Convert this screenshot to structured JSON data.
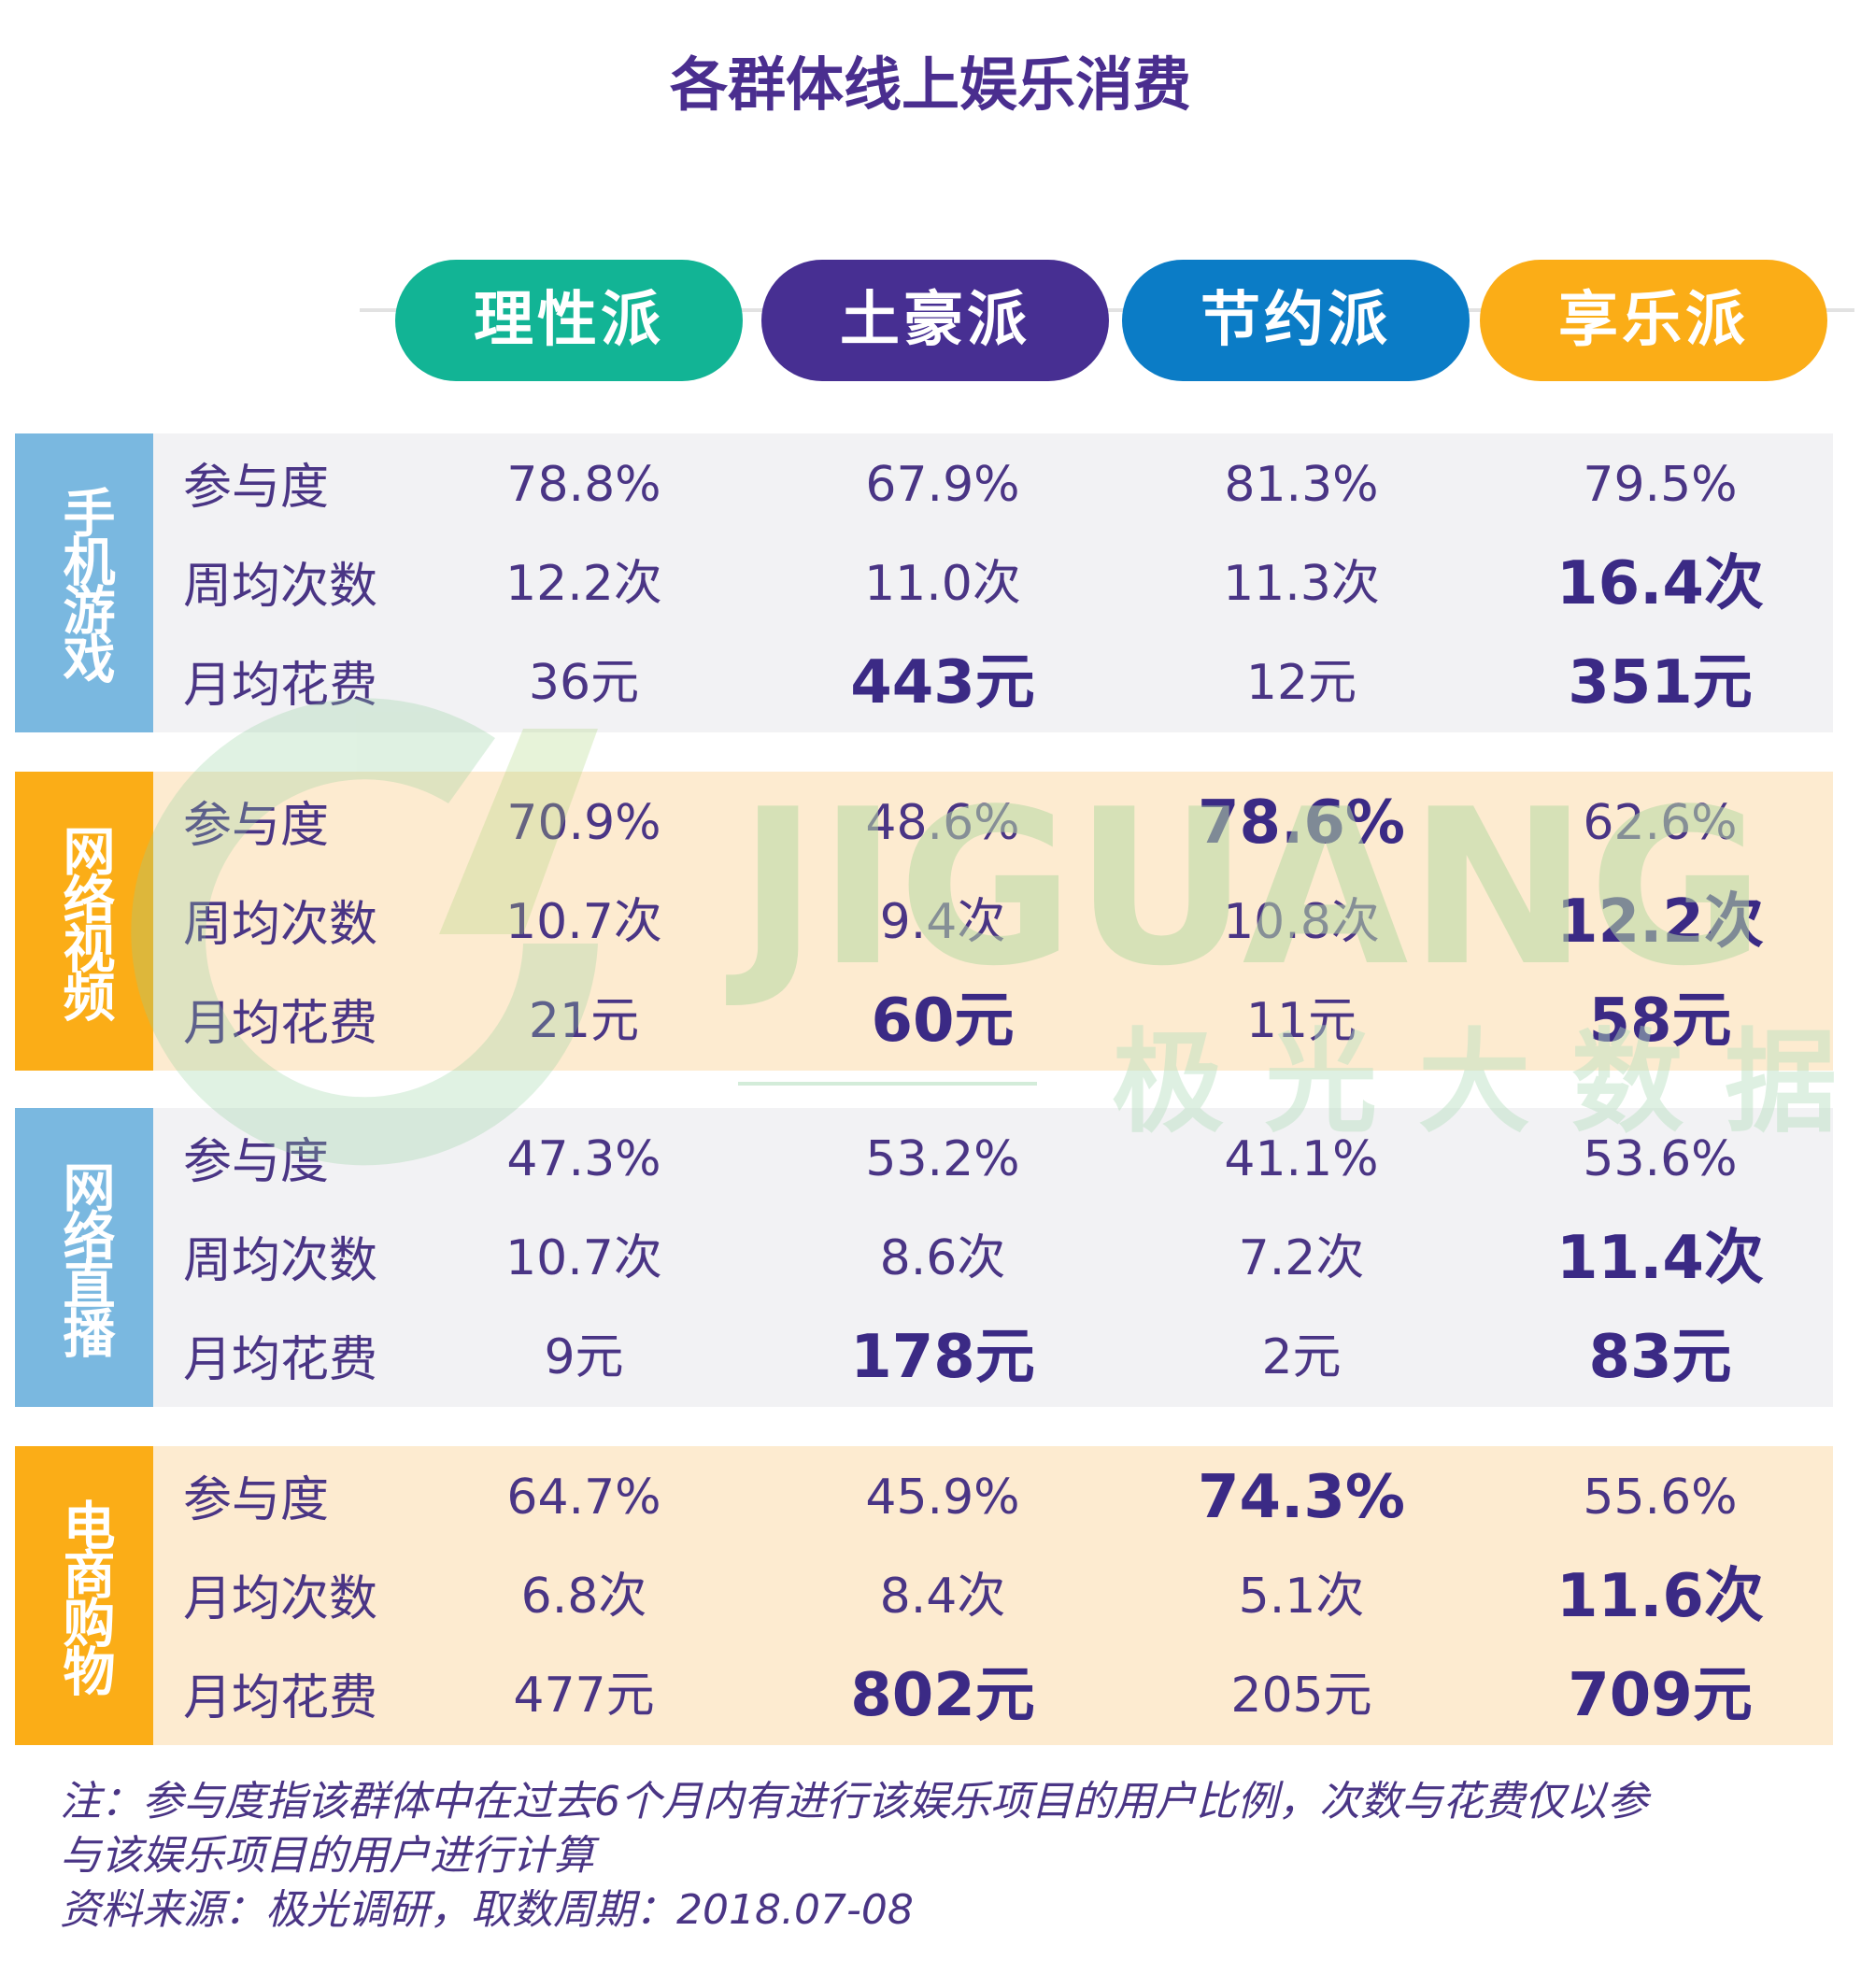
{
  "title": "各群体线上娱乐消费",
  "colors": {
    "title": "#4a2e8f",
    "pill_green": "#12b495",
    "pill_purple": "#472f92",
    "pill_blue": "#0b7cc6",
    "pill_orange": "#fbad17",
    "label_blue": "#7ab8e0",
    "label_orange": "#fbad17",
    "row_gray": "#f2f2f4",
    "row_cream": "#fdebd0"
  },
  "columns": [
    "理性派",
    "土豪派",
    "节约派",
    "享乐派"
  ],
  "groups": [
    {
      "label": "手机游戏",
      "rows": [
        {
          "label": "参与度",
          "values": [
            "78.8%",
            "67.9%",
            "81.3%",
            "79.5%"
          ]
        },
        {
          "label": "周均次数",
          "values": [
            "12.2次",
            "11.0次",
            "11.3次",
            "16.4次"
          ]
        },
        {
          "label": "月均花费",
          "values": [
            "36元",
            "443元",
            "12元",
            "351元"
          ]
        }
      ]
    },
    {
      "label": "网络视频",
      "rows": [
        {
          "label": "参与度",
          "values": [
            "70.9%",
            "48.6%",
            "78.6%",
            "62.6%"
          ]
        },
        {
          "label": "周均次数",
          "values": [
            "10.7次",
            "9.4次",
            "10.8次",
            "12.2次"
          ]
        },
        {
          "label": "月均花费",
          "values": [
            "21元",
            "60元",
            "11元",
            "58元"
          ]
        }
      ]
    },
    {
      "label": "网络直播",
      "rows": [
        {
          "label": "参与度",
          "values": [
            "47.3%",
            "53.2%",
            "41.1%",
            "53.6%"
          ]
        },
        {
          "label": "周均次数",
          "values": [
            "10.7次",
            "8.6次",
            "7.2次",
            "11.4次"
          ]
        },
        {
          "label": "月均花费",
          "values": [
            "9元",
            "178元",
            "2元",
            "83元"
          ]
        }
      ]
    },
    {
      "label": "电商购物",
      "rows": [
        {
          "label": "参与度",
          "values": [
            "64.7%",
            "45.9%",
            "74.3%",
            "55.6%"
          ]
        },
        {
          "label": "月均次数",
          "values": [
            "6.8次",
            "8.4次",
            "5.1次",
            "11.6次"
          ]
        },
        {
          "label": "月均花费",
          "values": [
            "477元",
            "802元",
            "205元",
            "709元"
          ]
        }
      ]
    }
  ],
  "watermark": {
    "text_en": "JIGUANG",
    "text_cn": "极光大数据"
  },
  "notes": [
    "注：参与度指该群体中在过去6个月内有进行该娱乐项目的用户比例，次数与花费仅以参",
    "与该娱乐项目的用户进行计算",
    "资料来源：极光调研，取数周期：2018.07-08"
  ]
}
